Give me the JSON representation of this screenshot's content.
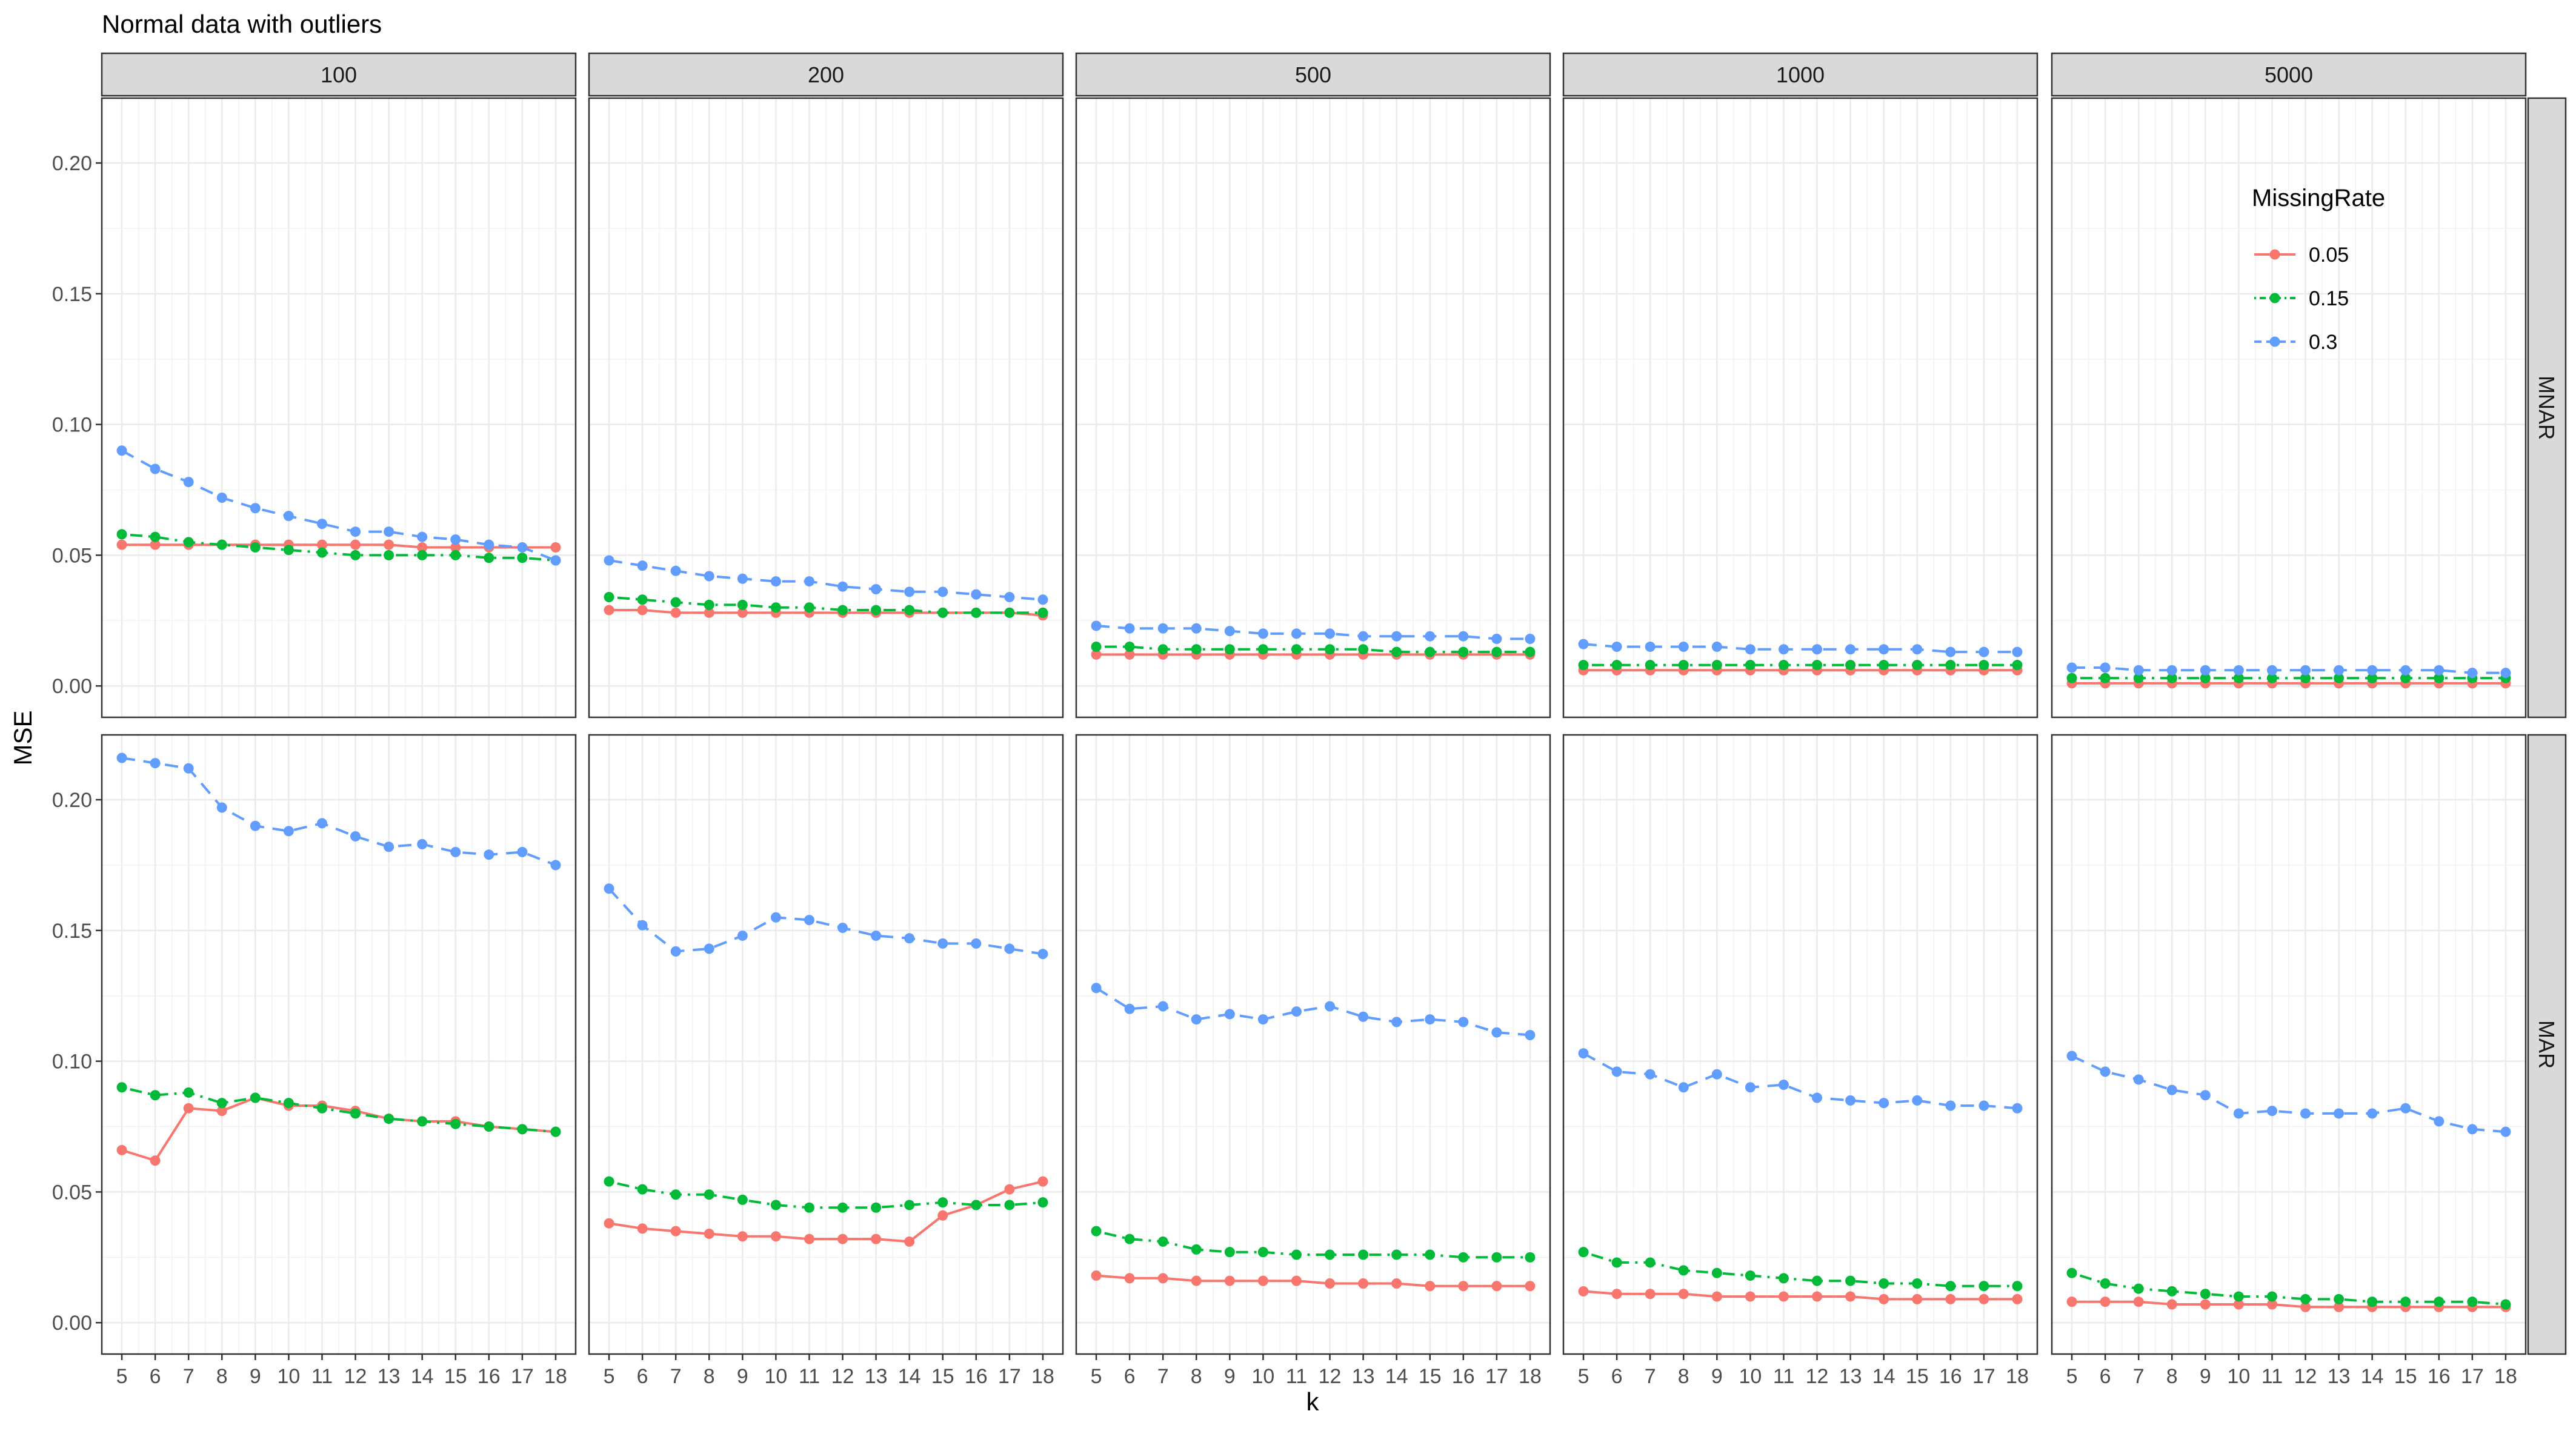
{
  "chart_data": {
    "type": "line",
    "title": "Normal data with outliers",
    "xlabel": "k",
    "ylabel": "MSE",
    "x": [
      5,
      6,
      7,
      8,
      9,
      10,
      11,
      12,
      13,
      14,
      15,
      16,
      17,
      18
    ],
    "ylim": [
      -0.012,
      0.2248
    ],
    "y_ticks": [
      0.0,
      0.05,
      0.1,
      0.15,
      0.2
    ],
    "y_tick_labels": [
      "0.00",
      "0.05",
      "0.10",
      "0.15",
      "0.20"
    ],
    "grid": true,
    "facet_columns": [
      "100",
      "200",
      "500",
      "1000",
      "5000"
    ],
    "facet_rows": [
      "MNAR",
      "MAR"
    ],
    "legend": {
      "title": "MissingRate",
      "placement": "inside top-right of MNAR / 5000 panel",
      "entries": [
        "0.05",
        "0.15",
        "0.3"
      ]
    },
    "series_styles": [
      {
        "name": "0.05",
        "color": "#F8766D",
        "dash": "solid"
      },
      {
        "name": "0.15",
        "color": "#00BA38",
        "dash": "dotdash"
      },
      {
        "name": "0.3",
        "color": "#619CFF",
        "dash": "dashed"
      }
    ],
    "panels": [
      {
        "row": "MNAR",
        "col": "100",
        "series": [
          {
            "name": "0.05",
            "values": [
              0.054,
              0.054,
              0.054,
              0.054,
              0.054,
              0.054,
              0.054,
              0.054,
              0.054,
              0.053,
              0.053,
              0.053,
              0.053,
              0.053
            ]
          },
          {
            "name": "0.15",
            "values": [
              0.058,
              0.057,
              0.055,
              0.054,
              0.053,
              0.052,
              0.051,
              0.05,
              0.05,
              0.05,
              0.05,
              0.049,
              0.049,
              0.048
            ]
          },
          {
            "name": "0.3",
            "values": [
              0.09,
              0.083,
              0.078,
              0.072,
              0.068,
              0.065,
              0.062,
              0.059,
              0.059,
              0.057,
              0.056,
              0.054,
              0.053,
              0.048
            ]
          }
        ]
      },
      {
        "row": "MNAR",
        "col": "200",
        "series": [
          {
            "name": "0.05",
            "values": [
              0.029,
              0.029,
              0.028,
              0.028,
              0.028,
              0.028,
              0.028,
              0.028,
              0.028,
              0.028,
              0.028,
              0.028,
              0.028,
              0.027
            ]
          },
          {
            "name": "0.15",
            "values": [
              0.034,
              0.033,
              0.032,
              0.031,
              0.031,
              0.03,
              0.03,
              0.029,
              0.029,
              0.029,
              0.028,
              0.028,
              0.028,
              0.028
            ]
          },
          {
            "name": "0.3",
            "values": [
              0.048,
              0.046,
              0.044,
              0.042,
              0.041,
              0.04,
              0.04,
              0.038,
              0.037,
              0.036,
              0.036,
              0.035,
              0.034,
              0.033
            ]
          }
        ]
      },
      {
        "row": "MNAR",
        "col": "500",
        "series": [
          {
            "name": "0.05",
            "values": [
              0.012,
              0.012,
              0.012,
              0.012,
              0.012,
              0.012,
              0.012,
              0.012,
              0.012,
              0.012,
              0.012,
              0.012,
              0.012,
              0.012
            ]
          },
          {
            "name": "0.15",
            "values": [
              0.015,
              0.015,
              0.014,
              0.014,
              0.014,
              0.014,
              0.014,
              0.014,
              0.014,
              0.013,
              0.013,
              0.013,
              0.013,
              0.013
            ]
          },
          {
            "name": "0.3",
            "values": [
              0.023,
              0.022,
              0.022,
              0.022,
              0.021,
              0.02,
              0.02,
              0.02,
              0.019,
              0.019,
              0.019,
              0.019,
              0.018,
              0.018
            ]
          }
        ]
      },
      {
        "row": "MNAR",
        "col": "1000",
        "series": [
          {
            "name": "0.05",
            "values": [
              0.006,
              0.006,
              0.006,
              0.006,
              0.006,
              0.006,
              0.006,
              0.006,
              0.006,
              0.006,
              0.006,
              0.006,
              0.006,
              0.006
            ]
          },
          {
            "name": "0.15",
            "values": [
              0.008,
              0.008,
              0.008,
              0.008,
              0.008,
              0.008,
              0.008,
              0.008,
              0.008,
              0.008,
              0.008,
              0.008,
              0.008,
              0.008
            ]
          },
          {
            "name": "0.3",
            "values": [
              0.016,
              0.015,
              0.015,
              0.015,
              0.015,
              0.014,
              0.014,
              0.014,
              0.014,
              0.014,
              0.014,
              0.013,
              0.013,
              0.013
            ]
          }
        ]
      },
      {
        "row": "MNAR",
        "col": "5000",
        "series": [
          {
            "name": "0.05",
            "values": [
              0.001,
              0.001,
              0.001,
              0.001,
              0.001,
              0.001,
              0.001,
              0.001,
              0.001,
              0.001,
              0.001,
              0.001,
              0.001,
              0.001
            ]
          },
          {
            "name": "0.15",
            "values": [
              0.003,
              0.003,
              0.003,
              0.003,
              0.003,
              0.003,
              0.003,
              0.003,
              0.003,
              0.003,
              0.003,
              0.003,
              0.003,
              0.003
            ]
          },
          {
            "name": "0.3",
            "values": [
              0.007,
              0.007,
              0.006,
              0.006,
              0.006,
              0.006,
              0.006,
              0.006,
              0.006,
              0.006,
              0.006,
              0.006,
              0.005,
              0.005
            ]
          }
        ]
      },
      {
        "row": "MAR",
        "col": "100",
        "series": [
          {
            "name": "0.05",
            "values": [
              0.066,
              0.062,
              0.082,
              0.081,
              0.086,
              0.083,
              0.083,
              0.081,
              0.078,
              0.077,
              0.077,
              0.075,
              0.074,
              0.073
            ]
          },
          {
            "name": "0.15",
            "values": [
              0.09,
              0.087,
              0.088,
              0.084,
              0.086,
              0.084,
              0.082,
              0.08,
              0.078,
              0.077,
              0.076,
              0.075,
              0.074,
              0.073
            ]
          },
          {
            "name": "0.3",
            "values": [
              0.216,
              0.214,
              0.212,
              0.197,
              0.19,
              0.188,
              0.191,
              0.186,
              0.182,
              0.183,
              0.18,
              0.179,
              0.18,
              0.175
            ]
          }
        ]
      },
      {
        "row": "MAR",
        "col": "200",
        "series": [
          {
            "name": "0.05",
            "values": [
              0.038,
              0.036,
              0.035,
              0.034,
              0.033,
              0.033,
              0.032,
              0.032,
              0.032,
              0.031,
              0.041,
              0.045,
              0.051,
              0.054
            ]
          },
          {
            "name": "0.15",
            "values": [
              0.054,
              0.051,
              0.049,
              0.049,
              0.047,
              0.045,
              0.044,
              0.044,
              0.044,
              0.045,
              0.046,
              0.045,
              0.045,
              0.046
            ]
          },
          {
            "name": "0.3",
            "values": [
              0.166,
              0.152,
              0.142,
              0.143,
              0.148,
              0.155,
              0.154,
              0.151,
              0.148,
              0.147,
              0.145,
              0.145,
              0.143,
              0.141
            ]
          }
        ]
      },
      {
        "row": "MAR",
        "col": "500",
        "series": [
          {
            "name": "0.05",
            "values": [
              0.018,
              0.017,
              0.017,
              0.016,
              0.016,
              0.016,
              0.016,
              0.015,
              0.015,
              0.015,
              0.014,
              0.014,
              0.014,
              0.014
            ]
          },
          {
            "name": "0.15",
            "values": [
              0.035,
              0.032,
              0.031,
              0.028,
              0.027,
              0.027,
              0.026,
              0.026,
              0.026,
              0.026,
              0.026,
              0.025,
              0.025,
              0.025
            ]
          },
          {
            "name": "0.3",
            "values": [
              0.128,
              0.12,
              0.121,
              0.116,
              0.118,
              0.116,
              0.119,
              0.121,
              0.117,
              0.115,
              0.116,
              0.115,
              0.111,
              0.11
            ]
          }
        ]
      },
      {
        "row": "MAR",
        "col": "1000",
        "series": [
          {
            "name": "0.05",
            "values": [
              0.012,
              0.011,
              0.011,
              0.011,
              0.01,
              0.01,
              0.01,
              0.01,
              0.01,
              0.009,
              0.009,
              0.009,
              0.009,
              0.009
            ]
          },
          {
            "name": "0.15",
            "values": [
              0.027,
              0.023,
              0.023,
              0.02,
              0.019,
              0.018,
              0.017,
              0.016,
              0.016,
              0.015,
              0.015,
              0.014,
              0.014,
              0.014
            ]
          },
          {
            "name": "0.3",
            "values": [
              0.103,
              0.096,
              0.095,
              0.09,
              0.095,
              0.09,
              0.091,
              0.086,
              0.085,
              0.084,
              0.085,
              0.083,
              0.083,
              0.082
            ]
          }
        ]
      },
      {
        "row": "MAR",
        "col": "5000",
        "series": [
          {
            "name": "0.05",
            "values": [
              0.008,
              0.008,
              0.008,
              0.007,
              0.007,
              0.007,
              0.007,
              0.006,
              0.006,
              0.006,
              0.006,
              0.006,
              0.006,
              0.006
            ]
          },
          {
            "name": "0.15",
            "values": [
              0.019,
              0.015,
              0.013,
              0.012,
              0.011,
              0.01,
              0.01,
              0.009,
              0.009,
              0.008,
              0.008,
              0.008,
              0.008,
              0.007
            ]
          },
          {
            "name": "0.3",
            "values": [
              0.102,
              0.096,
              0.093,
              0.089,
              0.087,
              0.08,
              0.081,
              0.08,
              0.08,
              0.08,
              0.082,
              0.077,
              0.074,
              0.073
            ]
          }
        ]
      }
    ]
  }
}
